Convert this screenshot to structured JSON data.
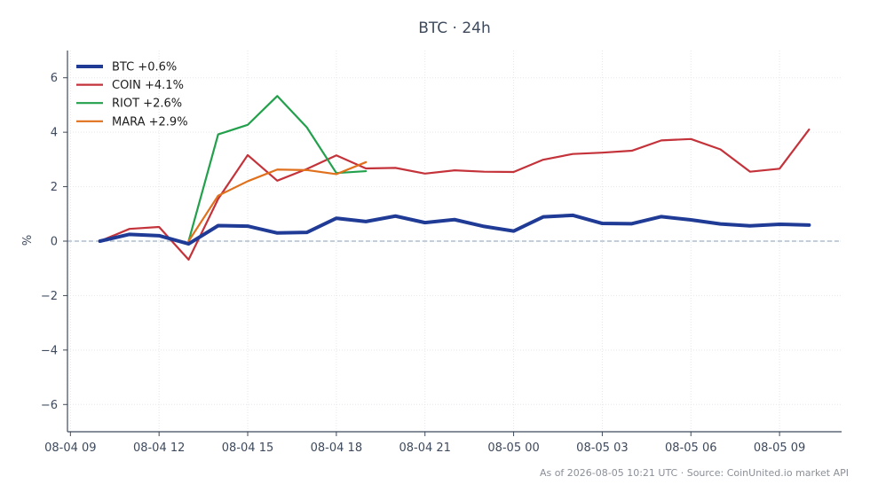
{
  "chart_data": {
    "type": "line",
    "title": "BTC · 24h",
    "ylabel": "%",
    "xlabel": "",
    "ylim": [
      -7,
      7
    ],
    "yticks": [
      -6,
      -4,
      -2,
      0,
      2,
      4,
      6
    ],
    "ytick_labels": [
      "−6",
      "−4",
      "−2",
      "0",
      "2",
      "4",
      "6"
    ],
    "xlim": [
      -0.1,
      26.1
    ],
    "xticks": [
      0,
      3,
      6,
      9,
      12,
      15,
      18,
      21,
      24
    ],
    "xtick_labels": [
      "08-04 09",
      "08-04 12",
      "08-04 15",
      "08-04 18",
      "08-04 21",
      "08-05 00",
      "08-05 03",
      "08-05 06",
      "08-05 09"
    ],
    "x_unit": "hours after 08-04 09:00 UTC",
    "grid": true,
    "legend_position": "top-left",
    "zero_line": true,
    "series": [
      {
        "name": "BTC +0.6%",
        "color": "#1f3b96",
        "emphasis": true,
        "x": [
          1,
          2,
          3,
          4,
          5,
          6,
          7,
          8,
          9,
          10,
          11,
          12,
          13,
          14,
          15,
          16,
          17,
          18,
          19,
          20,
          21,
          22,
          23,
          24,
          25
        ],
        "y": [
          0.0,
          0.25,
          0.2,
          -0.1,
          0.57,
          0.55,
          0.3,
          0.32,
          0.84,
          0.72,
          0.92,
          0.68,
          0.79,
          0.54,
          0.37,
          0.89,
          0.95,
          0.65,
          0.64,
          0.9,
          0.78,
          0.63,
          0.56,
          0.62,
          0.59
        ]
      },
      {
        "name": "COIN +4.1%",
        "color": "#c4323a",
        "emphasis": false,
        "x": [
          1,
          2,
          3,
          4,
          5,
          6,
          7,
          8,
          9,
          10,
          11,
          12,
          13,
          14,
          15,
          16,
          17,
          18,
          19,
          20,
          21,
          22,
          23,
          24,
          25
        ],
        "y": [
          0.0,
          0.45,
          0.52,
          -0.68,
          1.55,
          3.16,
          2.22,
          2.65,
          3.15,
          2.67,
          2.69,
          2.48,
          2.6,
          2.55,
          2.54,
          2.99,
          3.2,
          3.25,
          3.32,
          3.7,
          3.75,
          3.37,
          2.55,
          2.66,
          4.1
        ]
      },
      {
        "name": "RIOT +2.6%",
        "color": "#22a04b",
        "emphasis": false,
        "x": [
          4,
          5,
          6,
          7,
          8,
          9,
          10
        ],
        "y": [
          0.0,
          3.92,
          4.27,
          5.33,
          4.18,
          2.5,
          2.57
        ]
      },
      {
        "name": "MARA +2.9%",
        "color": "#e0701c",
        "emphasis": false,
        "x": [
          4,
          5,
          6,
          7,
          8,
          9,
          10
        ],
        "y": [
          0.0,
          1.67,
          2.2,
          2.63,
          2.61,
          2.46,
          2.9
        ]
      }
    ]
  },
  "footer": "As of 2026-08-05 10:21 UTC · Source: CoinUnited.io market API"
}
